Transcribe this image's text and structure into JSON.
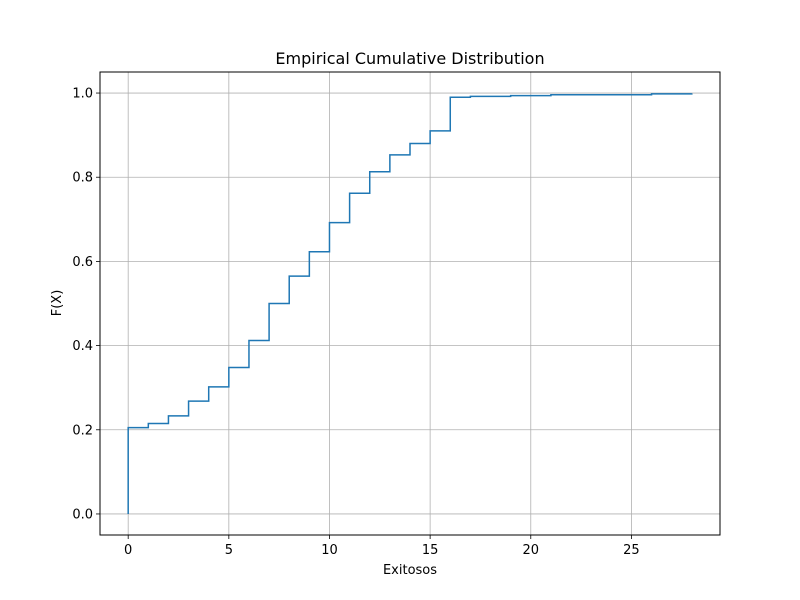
{
  "chart_data": {
    "type": "line",
    "drawstyle": "steps-post",
    "title": "Empirical Cumulative Distribution",
    "xlabel": "Exitosos",
    "ylabel": "F(X)",
    "xlim": [
      -1.4,
      29.4
    ],
    "ylim": [
      -0.05,
      1.05
    ],
    "grid": true,
    "line_color": "#1f77b4",
    "xticks": [
      0,
      5,
      10,
      15,
      20,
      25
    ],
    "yticks": [
      0.0,
      0.2,
      0.4,
      0.6,
      0.8,
      1.0
    ],
    "xtick_labels": [
      "0",
      "5",
      "10",
      "15",
      "20",
      "25"
    ],
    "ytick_labels": [
      "0.0",
      "0.2",
      "0.4",
      "0.6",
      "0.8",
      "1.0"
    ],
    "series": [
      {
        "x": [
          0,
          0,
          1,
          2,
          3,
          4,
          5,
          6,
          7,
          8,
          9,
          10,
          11,
          12,
          13,
          14,
          15,
          16,
          17,
          19,
          21,
          26,
          28
        ],
        "y": [
          0.0,
          0.205,
          0.215,
          0.233,
          0.268,
          0.302,
          0.348,
          0.412,
          0.5,
          0.565,
          0.623,
          0.692,
          0.762,
          0.813,
          0.853,
          0.88,
          0.91,
          0.99,
          0.992,
          0.994,
          0.996,
          0.998,
          0.999
        ]
      }
    ]
  }
}
